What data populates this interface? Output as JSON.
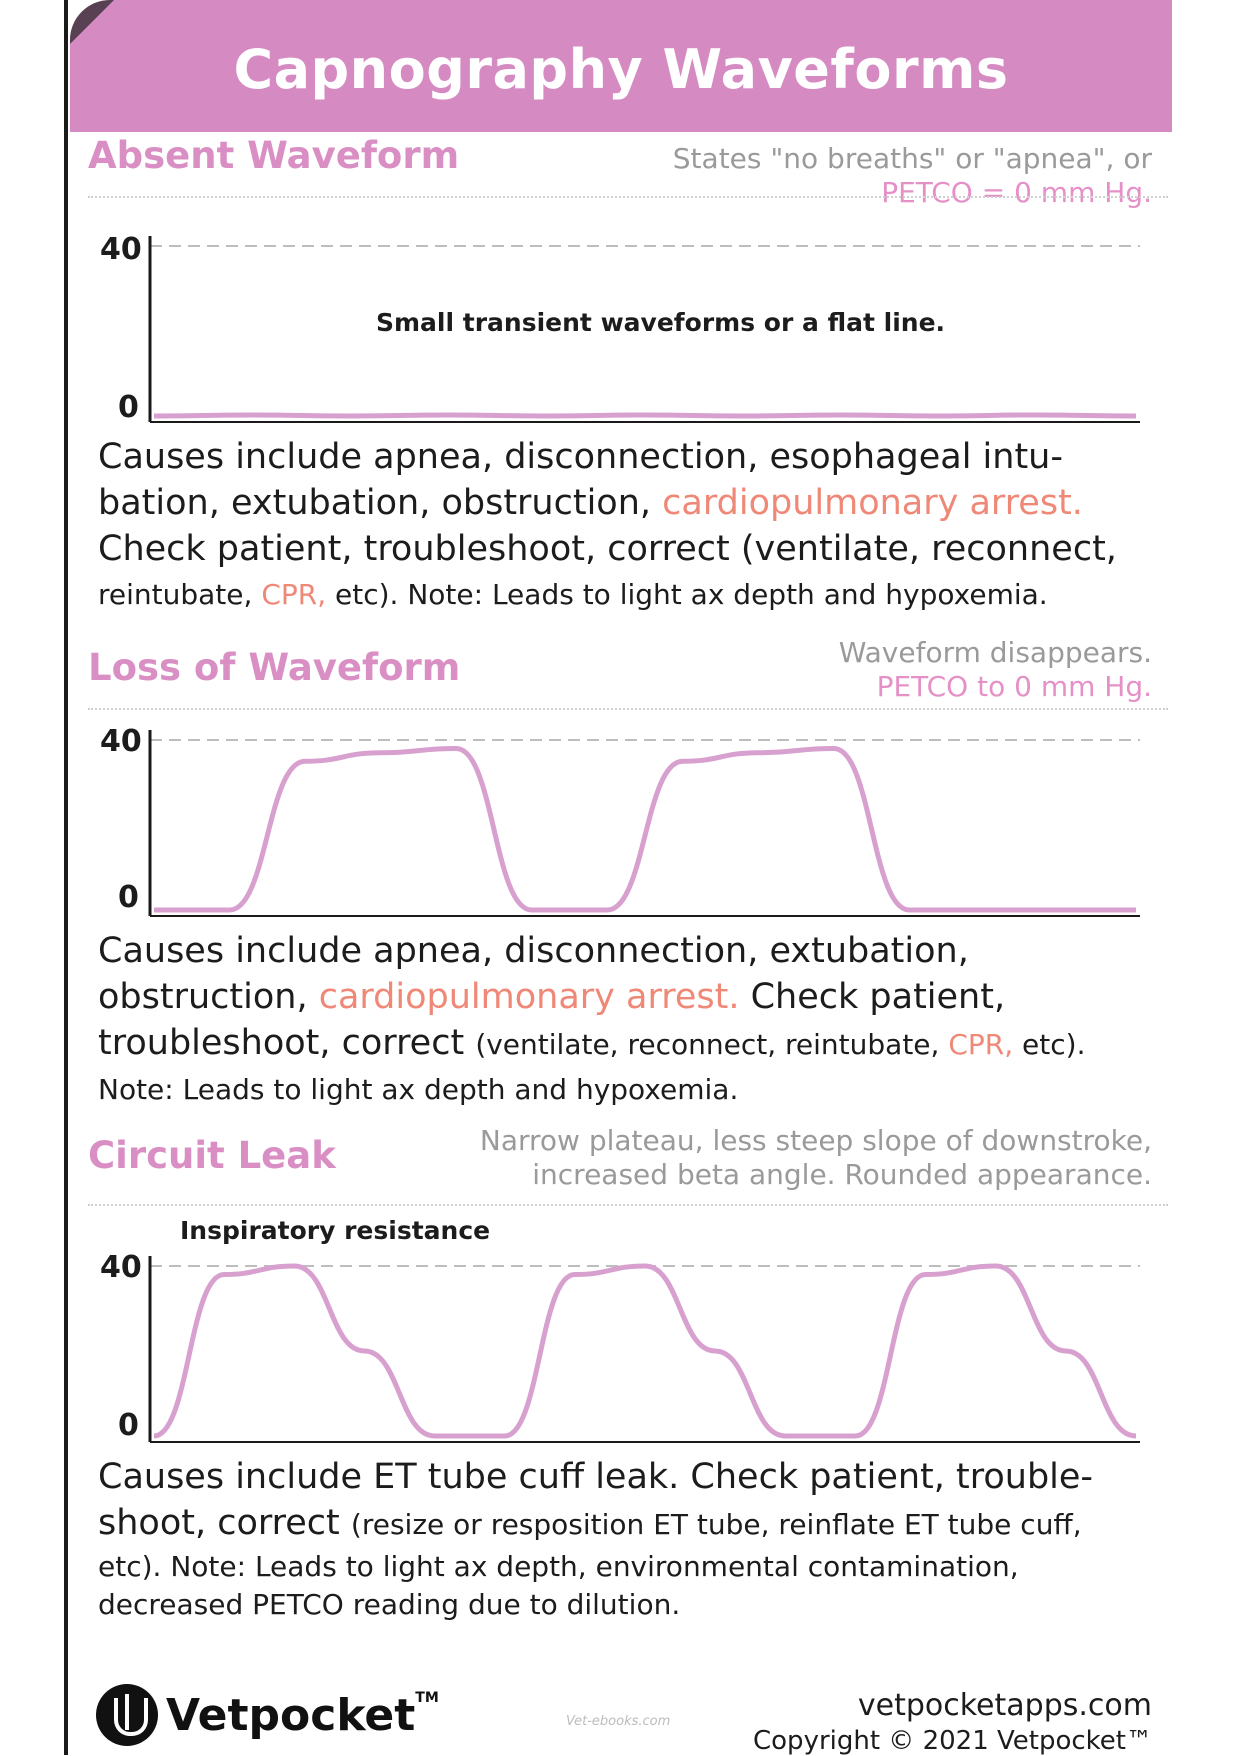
{
  "banner": {
    "title": "Capnography Waveforms"
  },
  "sections": {
    "absent": {
      "title": "Absent Waveform",
      "desc_line1": "States \"no breaths\" or \"apnea\", or",
      "desc_line2": "PETCO  = 0 mm Hg.",
      "y_top": "40",
      "y_bottom": "0",
      "chart_note": "Small transient waveforms or a flat line.",
      "text": [
        {
          "t": "Causes include apnea, disconnection, esophageal intu-",
          "c": ""
        },
        {
          "t": "bation, extubation, obstruction, ",
          "c": "",
          "extra": "cardiopulmonary arrest."
        },
        {
          "t": "Check patient, troubleshoot, correct (ventilate, reconnect,",
          "c": ""
        },
        {
          "t": "reintubate, ",
          "c": "",
          "extra": "CPR,",
          "tail": " etc). Note: Leads to light ax depth and hypoxemia."
        }
      ]
    },
    "loss": {
      "title": "Loss of Waveform",
      "desc_line1": "Waveform disappears.",
      "desc_line2": "PETCO  to 0 mm Hg.",
      "y_top": "40",
      "y_bottom": "0",
      "line1": "Causes include apnea, disconnection, extubation,",
      "line2a": "obstruction, ",
      "line2b": "cardiopulmonary arrest.",
      "line2c": " Check patient,",
      "line3a": "troubleshoot, correct ",
      "line3b": "(ventilate, reconnect, reintubate, ",
      "line3c": "CPR,",
      "line3d": " etc).",
      "line4": "Note: Leads to light ax depth and hypoxemia."
    },
    "leak": {
      "title": "Circuit Leak",
      "desc_line1": "Narrow plateau, less steep slope of downstroke,",
      "desc_line2": "increased beta angle. Rounded appearance.",
      "chart_note": "Inspiratory resistance",
      "y_top": "40",
      "y_bottom": "0",
      "line1": "Causes include ET tube cuff leak. Check patient, trouble-",
      "line2a": "shoot, correct ",
      "line2b": "(resize or resposition ET tube, reinflate ET tube cuff,",
      "line3": "etc). Note: Leads to light ax depth, environmental contamination,",
      "line4": "decreased PETCO  reading due to dilution."
    }
  },
  "chart_data": [
    {
      "type": "line",
      "title": "Absent Waveform",
      "ylim": [
        0,
        40
      ],
      "yticks": [
        "0",
        "40"
      ],
      "series": [
        {
          "description_from_note": true,
          "values": [
            0,
            1,
            0,
            1,
            0,
            1,
            0,
            1,
            0,
            1,
            0
          ]
        }
      ]
    },
    {
      "type": "line",
      "title": "Loss of Waveform",
      "ylim": [
        0,
        40
      ],
      "yticks": [
        "0",
        "40"
      ],
      "series": [
        {
          "values": [
            0,
            0,
            35,
            37,
            38,
            0,
            0,
            35,
            37,
            38,
            0,
            0,
            0,
            0
          ]
        }
      ]
    },
    {
      "type": "line",
      "title": "Circuit Leak",
      "ylim": [
        0,
        40
      ],
      "yticks": [
        "0",
        "40"
      ],
      "series": [
        {
          "values": [
            0,
            38,
            40,
            20,
            0,
            0,
            38,
            40,
            20,
            0,
            0,
            38,
            40,
            20,
            0
          ]
        }
      ]
    }
  ],
  "footer": {
    "brand": "Vetpocket",
    "tm": "TM",
    "watermark": "Vet-ebooks.com",
    "site": "vetpocketapps.com",
    "copyright": "Copyright © 2021 Vetpocket™"
  },
  "colors": {
    "banner": "#d58bc2",
    "accent_pink": "#d98fc4",
    "accent_red": "#ef8877",
    "wave": "#d99ad0"
  }
}
